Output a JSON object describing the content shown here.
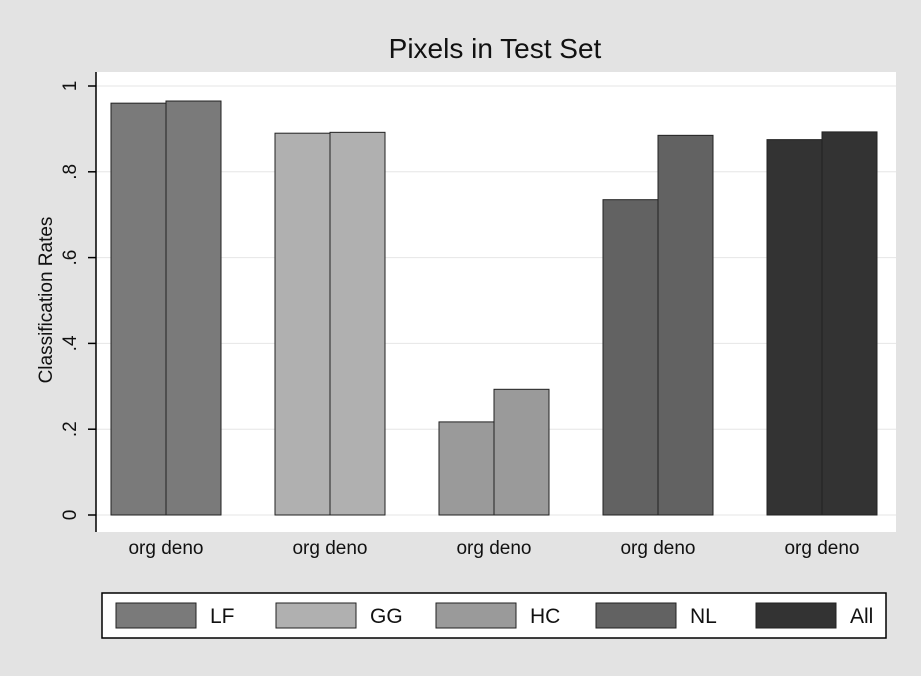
{
  "chart_data": {
    "type": "bar",
    "title": "Pixels in Test Set",
    "xlabel": "",
    "ylabel": "Classification Rates",
    "ylim": [
      0,
      1
    ],
    "yticks": [
      0,
      0.2,
      0.4,
      0.6,
      0.8,
      1
    ],
    "ytick_labels": [
      "0",
      ".2",
      ".4",
      ".6",
      ".8",
      "1"
    ],
    "grid": true,
    "legend_position": "bottom",
    "groups": [
      {
        "name": "LF",
        "color": "#7a7a7a",
        "bars": [
          {
            "label": "org",
            "value": 0.96
          },
          {
            "label": "deno",
            "value": 0.965
          }
        ]
      },
      {
        "name": "GG",
        "color": "#b0b0b0",
        "bars": [
          {
            "label": "org",
            "value": 0.89
          },
          {
            "label": "deno",
            "value": 0.892
          }
        ]
      },
      {
        "name": "HC",
        "color": "#9a9a9a",
        "bars": [
          {
            "label": "org",
            "value": 0.217
          },
          {
            "label": "deno",
            "value": 0.293
          }
        ]
      },
      {
        "name": "NL",
        "color": "#626262",
        "bars": [
          {
            "label": "org",
            "value": 0.735
          },
          {
            "label": "deno",
            "value": 0.885
          }
        ]
      },
      {
        "name": "All",
        "color": "#333333",
        "bars": [
          {
            "label": "org",
            "value": 0.875
          },
          {
            "label": "deno",
            "value": 0.893
          }
        ]
      }
    ]
  }
}
